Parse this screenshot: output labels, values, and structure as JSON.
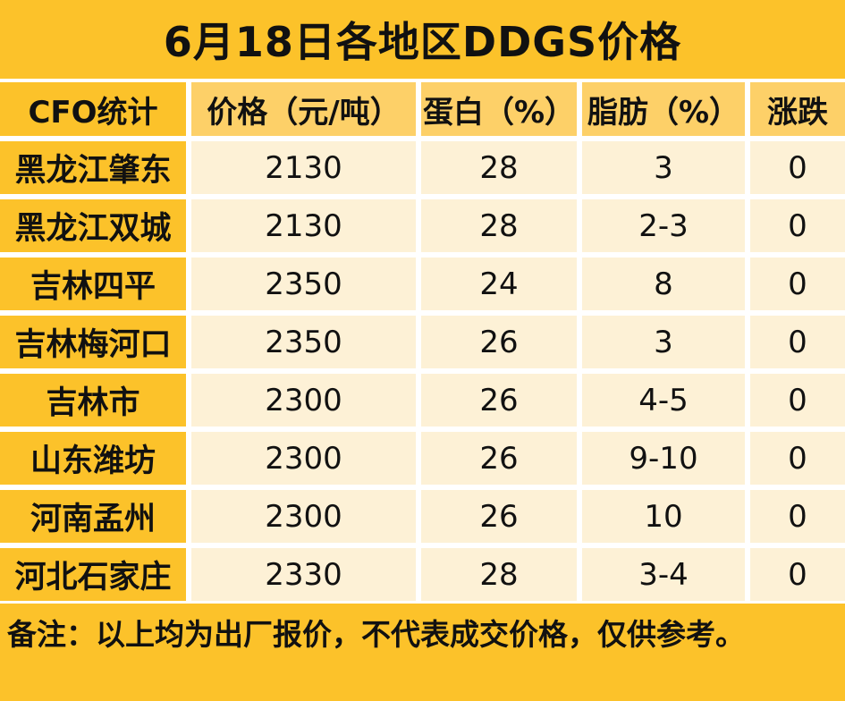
{
  "title": "6月18日各地区DDGS价格",
  "columns": [
    "CFO统计",
    "价格（元/吨）",
    "蛋白（%）",
    "脂肪（%）",
    "涨跌"
  ],
  "rows": [
    {
      "region": "黑龙江肇东",
      "price": "2130",
      "protein": "28",
      "fat": "3",
      "change": "0"
    },
    {
      "region": "黑龙江双城",
      "price": "2130",
      "protein": "28",
      "fat": "2-3",
      "change": "0"
    },
    {
      "region": "吉林四平",
      "price": "2350",
      "protein": "24",
      "fat": "8",
      "change": "0"
    },
    {
      "region": "吉林梅河口",
      "price": "2350",
      "protein": "26",
      "fat": "3",
      "change": "0"
    },
    {
      "region": "吉林市",
      "price": "2300",
      "protein": "26",
      "fat": "4-5",
      "change": "0"
    },
    {
      "region": "山东潍坊",
      "price": "2300",
      "protein": "26",
      "fat": "9-10",
      "change": "0"
    },
    {
      "region": "河南孟州",
      "price": "2300",
      "protein": "26",
      "fat": "10",
      "change": "0"
    },
    {
      "region": "河北石家庄",
      "price": "2330",
      "protein": "28",
      "fat": "3-4",
      "change": "0"
    }
  ],
  "note": "备注：以上均为出厂报价，不代表成交价格，仅供参考。",
  "colors": {
    "title_bg": "#fcc22a",
    "header_bg": "#fdd068",
    "cell_bg": "#fdf1d6"
  }
}
